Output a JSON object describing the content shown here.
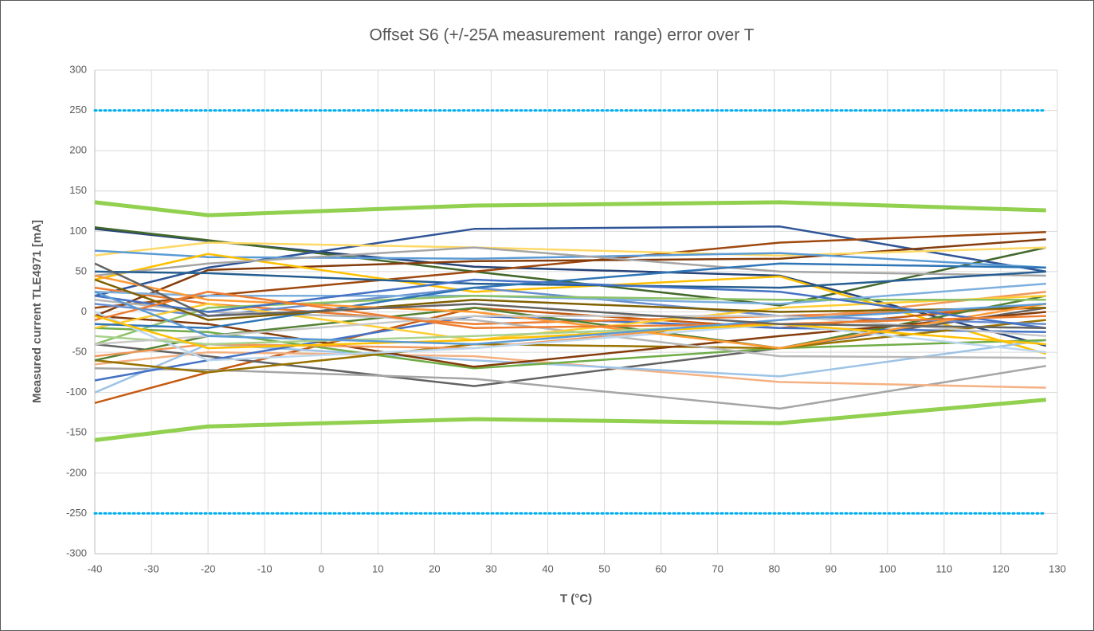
{
  "chart_data": {
    "type": "line",
    "title": "Offset S6 (+/-25A measurement  range) error over T",
    "x_label": "T (°C)",
    "y_label": "Measured current TLE4971 [mA]",
    "x": [
      -40,
      -20,
      27,
      81,
      128
    ],
    "xlim": [
      -40,
      130
    ],
    "xticks": [
      -40,
      -30,
      -20,
      -10,
      0,
      10,
      20,
      30,
      40,
      50,
      60,
      70,
      80,
      90,
      100,
      110,
      120,
      130
    ],
    "ylim": [
      -300,
      300
    ],
    "yticks": [
      -300,
      -250,
      -200,
      -150,
      -100,
      -50,
      0,
      50,
      100,
      150,
      200,
      250,
      300
    ],
    "grid": true,
    "series": [
      {
        "color": "#00b0f0",
        "dashed": true,
        "width": 3,
        "values": [
          250,
          250,
          250,
          250,
          250
        ]
      },
      {
        "color": "#00b0f0",
        "dashed": true,
        "width": 3,
        "values": [
          -250,
          -250,
          -250,
          -250,
          -250
        ]
      },
      {
        "color": "#264478",
        "width": 2.5,
        "values": [
          103,
          88,
          56,
          45,
          -42
        ]
      },
      {
        "color": "#43682b",
        "width": 2.5,
        "values": [
          105,
          89,
          50,
          8,
          80
        ]
      },
      {
        "color": "#2f5597",
        "width": 2.5,
        "values": [
          20,
          55,
          103,
          106,
          50
        ]
      },
      {
        "color": "#9e480e",
        "width": 2.5,
        "values": [
          5,
          20,
          50,
          86,
          99
        ]
      },
      {
        "color": "#843c0c",
        "width": 2.5,
        "values": [
          -5,
          52,
          63,
          66,
          90
        ]
      },
      {
        "color": "#ffd966",
        "width": 2.5,
        "values": [
          70,
          86,
          80,
          70,
          80
        ]
      },
      {
        "color": "#5b9bd5",
        "width": 2.5,
        "values": [
          76,
          68,
          66,
          73,
          55
        ]
      },
      {
        "color": "#ffc000",
        "width": 2.5,
        "values": [
          40,
          72,
          25,
          44,
          -52
        ]
      },
      {
        "color": "#a5a5a5",
        "width": 2.5,
        "values": [
          45,
          60,
          80,
          50,
          45
        ]
      },
      {
        "color": "#c55a11",
        "width": 2.5,
        "values": [
          -113,
          -75,
          5,
          -20,
          10
        ]
      },
      {
        "color": "#636363",
        "width": 2.5,
        "values": [
          -40,
          -55,
          -92,
          -45,
          5
        ]
      },
      {
        "color": "#a5a5a5",
        "width": 2.5,
        "values": [
          -70,
          -72,
          -83,
          -120,
          -67
        ]
      },
      {
        "color": "#f4b183",
        "width": 2.5,
        "values": [
          -65,
          -50,
          -55,
          -87,
          -94
        ]
      },
      {
        "color": "#9dc3e6",
        "width": 2.5,
        "values": [
          -100,
          -40,
          -60,
          -80,
          -35
        ]
      },
      {
        "color": "#4472c4",
        "width": 2.5,
        "values": [
          -85,
          -60,
          -5,
          -20,
          -25
        ]
      },
      {
        "color": "#70ad47",
        "width": 2.5,
        "values": [
          -20,
          -25,
          -70,
          -45,
          -35
        ]
      },
      {
        "color": "#ed7d31",
        "width": 2.5,
        "values": [
          30,
          10,
          -15,
          -5,
          5
        ]
      },
      {
        "color": "#255e91",
        "width": 2.5,
        "values": [
          50,
          48,
          35,
          30,
          50
        ]
      },
      {
        "color": "#997300",
        "width": 2.5,
        "values": [
          -60,
          -75,
          -40,
          -45,
          -10
        ]
      },
      {
        "color": "#548235",
        "width": 2.5,
        "values": [
          -60,
          -30,
          5,
          -45,
          20
        ]
      },
      {
        "color": "#843c0c",
        "width": 2.5,
        "values": [
          -5,
          -15,
          -68,
          -30,
          0
        ]
      },
      {
        "color": "#698ed0",
        "width": 2.5,
        "values": [
          10,
          -5,
          30,
          -5,
          -15
        ]
      },
      {
        "color": "#f1975a",
        "width": 2.5,
        "values": [
          -55,
          -40,
          -45,
          -10,
          25
        ]
      },
      {
        "color": "#b7b7b7",
        "width": 2.5,
        "values": [
          15,
          0,
          -10,
          -55,
          -57
        ]
      },
      {
        "color": "#ffcd33",
        "width": 2.5,
        "values": [
          -20,
          10,
          -35,
          5,
          20
        ]
      },
      {
        "color": "#7cafdd",
        "width": 2.5,
        "values": [
          25,
          20,
          20,
          10,
          35
        ]
      },
      {
        "color": "#8cc168",
        "width": 2.5,
        "values": [
          -40,
          5,
          20,
          15,
          15
        ]
      },
      {
        "color": "#bdd7ee",
        "width": 2.5,
        "values": [
          0,
          -60,
          -45,
          -15,
          -50
        ]
      },
      {
        "color": "#2e75b6",
        "width": 2.5,
        "values": [
          -15,
          -20,
          30,
          60,
          55
        ]
      },
      {
        "color": "#7f6000",
        "width": 2.5,
        "values": [
          40,
          -10,
          15,
          0,
          5
        ]
      },
      {
        "color": "#ff9933",
        "width": 2.5,
        "values": [
          45,
          15,
          0,
          -45,
          10
        ]
      },
      {
        "color": "#4472c4",
        "width": 2.5,
        "values": [
          20,
          0,
          40,
          25,
          -20
        ]
      },
      {
        "color": "#a9d18e",
        "width": 2.5,
        "values": [
          -30,
          -40,
          -30,
          -15,
          -20
        ]
      },
      {
        "color": "#c9c9c9",
        "width": 2.5,
        "values": [
          -40,
          -30,
          -5,
          -5,
          -30
        ]
      },
      {
        "color": "#ed7d31",
        "width": 2.5,
        "values": [
          -10,
          25,
          -20,
          -15,
          -5
        ]
      },
      {
        "color": "#ffc000",
        "width": 2.5,
        "values": [
          -5,
          -45,
          -35,
          -15,
          -40
        ]
      },
      {
        "color": "#5b9bd5",
        "width": 2.5,
        "values": [
          25,
          -30,
          -40,
          -10,
          10
        ]
      },
      {
        "color": "#636363",
        "width": 2.5,
        "values": [
          60,
          -5,
          10,
          -15,
          -20
        ]
      },
      {
        "color": "#92d050",
        "width": 5,
        "values": [
          136,
          120,
          132,
          136,
          126
        ]
      },
      {
        "color": "#92d050",
        "width": 5,
        "values": [
          -159,
          -142,
          -133,
          -138,
          -109
        ]
      }
    ]
  }
}
